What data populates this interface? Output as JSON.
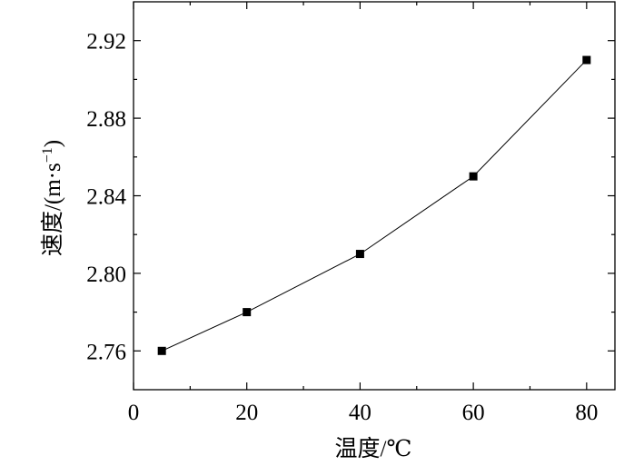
{
  "chart_data": {
    "type": "line",
    "xlabel": "温度/℃",
    "ylabel": "速度/(m·s",
    "ylabel_sup": "−1",
    "ylabel_tail": ")",
    "xlim": [
      0,
      85
    ],
    "ylim": [
      2.74,
      2.94
    ],
    "x_ticks": [
      0,
      20,
      40,
      60,
      80
    ],
    "x_tick_labels": [
      "0",
      "20",
      "40",
      "60",
      "80"
    ],
    "y_ticks": [
      2.76,
      2.8,
      2.84,
      2.88,
      2.92
    ],
    "y_tick_labels": [
      "2.76",
      "2.80",
      "2.84",
      "2.88",
      "2.92"
    ],
    "grid": false,
    "marker": "square",
    "series": [
      {
        "x": [
          5,
          20,
          40,
          60,
          80
        ],
        "y": [
          2.76,
          2.78,
          2.81,
          2.85,
          2.91
        ]
      }
    ]
  }
}
